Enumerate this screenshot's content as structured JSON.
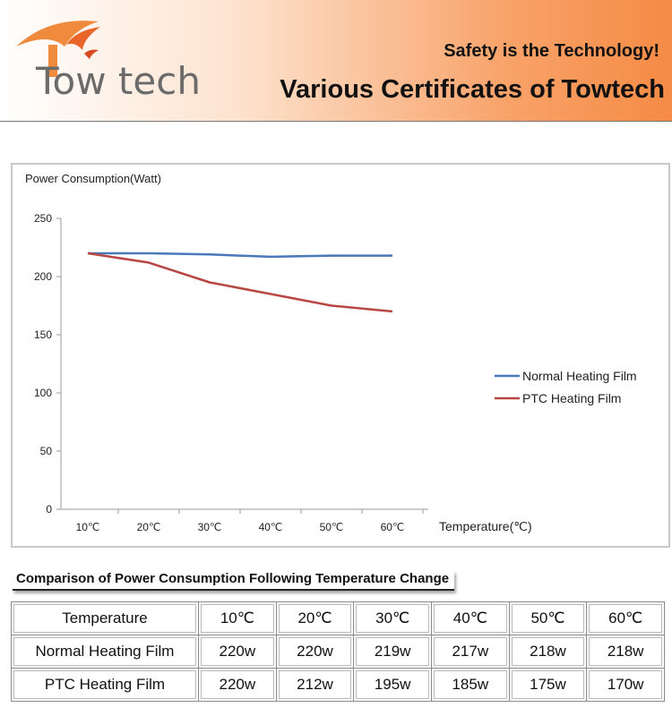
{
  "header": {
    "logo_text": "Tow tech",
    "tagline": "Safety is the Technology!",
    "headline": "Various Certificates of Towtech"
  },
  "chart_data": {
    "type": "line",
    "ylabel": "Power Consumption(Watt)",
    "xlabel": "Temperature(℃)",
    "categories": [
      "10℃",
      "20℃",
      "30℃",
      "40℃",
      "50℃",
      "60℃"
    ],
    "yticks": [
      0,
      50,
      100,
      150,
      200,
      250
    ],
    "ylim": [
      0,
      250
    ],
    "grid": false,
    "legend_position": "right",
    "series": [
      {
        "name": "Normal Heating Film",
        "color": "#4a78b8",
        "values": [
          220,
          220,
          219,
          217,
          218,
          218
        ]
      },
      {
        "name": "PTC  Heating Film",
        "color": "#b84643",
        "values": [
          220,
          212,
          195,
          185,
          175,
          170
        ]
      }
    ]
  },
  "caption": "Comparison of Power Consumption Following Temperature Change",
  "table": {
    "header": [
      "Temperature",
      "10℃",
      "20℃",
      "30℃",
      "40℃",
      "50℃",
      "60℃"
    ],
    "rows": [
      [
        "Normal Heating Film",
        "220w",
        "220w",
        "219w",
        "217w",
        "218w",
        "218w"
      ],
      [
        "PTC Heating Film",
        "220w",
        "212w",
        "195w",
        "185w",
        "175w",
        "170w"
      ]
    ]
  }
}
